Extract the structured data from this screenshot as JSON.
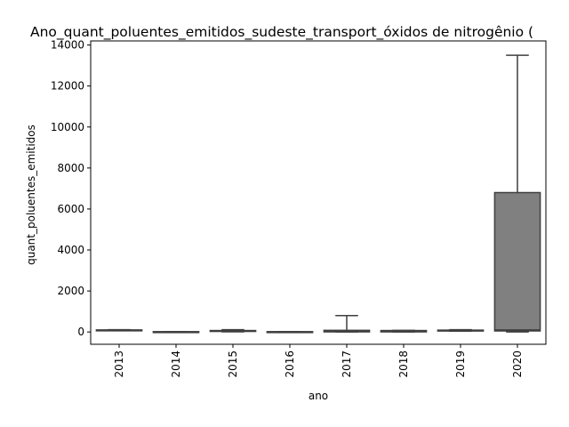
{
  "chart_data": {
    "type": "box",
    "title": "Ano_quant_poluentes_emitidos_sudeste_transport_óxidos de nitrogênio (",
    "xlabel": "ano",
    "ylabel": "quant_poluentes_emitidos",
    "ylim": [
      -600,
      14200
    ],
    "yticks": [
      0,
      2000,
      4000,
      6000,
      8000,
      10000,
      12000,
      14000
    ],
    "grid": false,
    "legend": "none",
    "box_color": "#808080",
    "line_color": "#3f3f3f",
    "categories": [
      "2013",
      "2014",
      "2015",
      "2016",
      "2017",
      "2018",
      "2019",
      "2020"
    ],
    "boxes": [
      {
        "year": "2013",
        "whislo": 60,
        "q1": 60,
        "med": 80,
        "q3": 100,
        "whishi": 110
      },
      {
        "year": "2014",
        "whislo": 5,
        "q1": 5,
        "med": 10,
        "q3": 15,
        "whishi": 20
      },
      {
        "year": "2015",
        "whislo": 10,
        "q1": 30,
        "med": 50,
        "q3": 70,
        "whishi": 110
      },
      {
        "year": "2016",
        "whislo": 5,
        "q1": 5,
        "med": 10,
        "q3": 15,
        "whishi": 20
      },
      {
        "year": "2017",
        "whislo": 0,
        "q1": 5,
        "med": 30,
        "q3": 80,
        "whishi": 800
      },
      {
        "year": "2018",
        "whislo": 0,
        "q1": 5,
        "med": 30,
        "q3": 70,
        "whishi": 80
      },
      {
        "year": "2019",
        "whislo": 40,
        "q1": 50,
        "med": 70,
        "q3": 90,
        "whishi": 110
      },
      {
        "year": "2020",
        "whislo": 0,
        "q1": 50,
        "med": 100,
        "q3": 6800,
        "whishi": 13500
      }
    ]
  }
}
